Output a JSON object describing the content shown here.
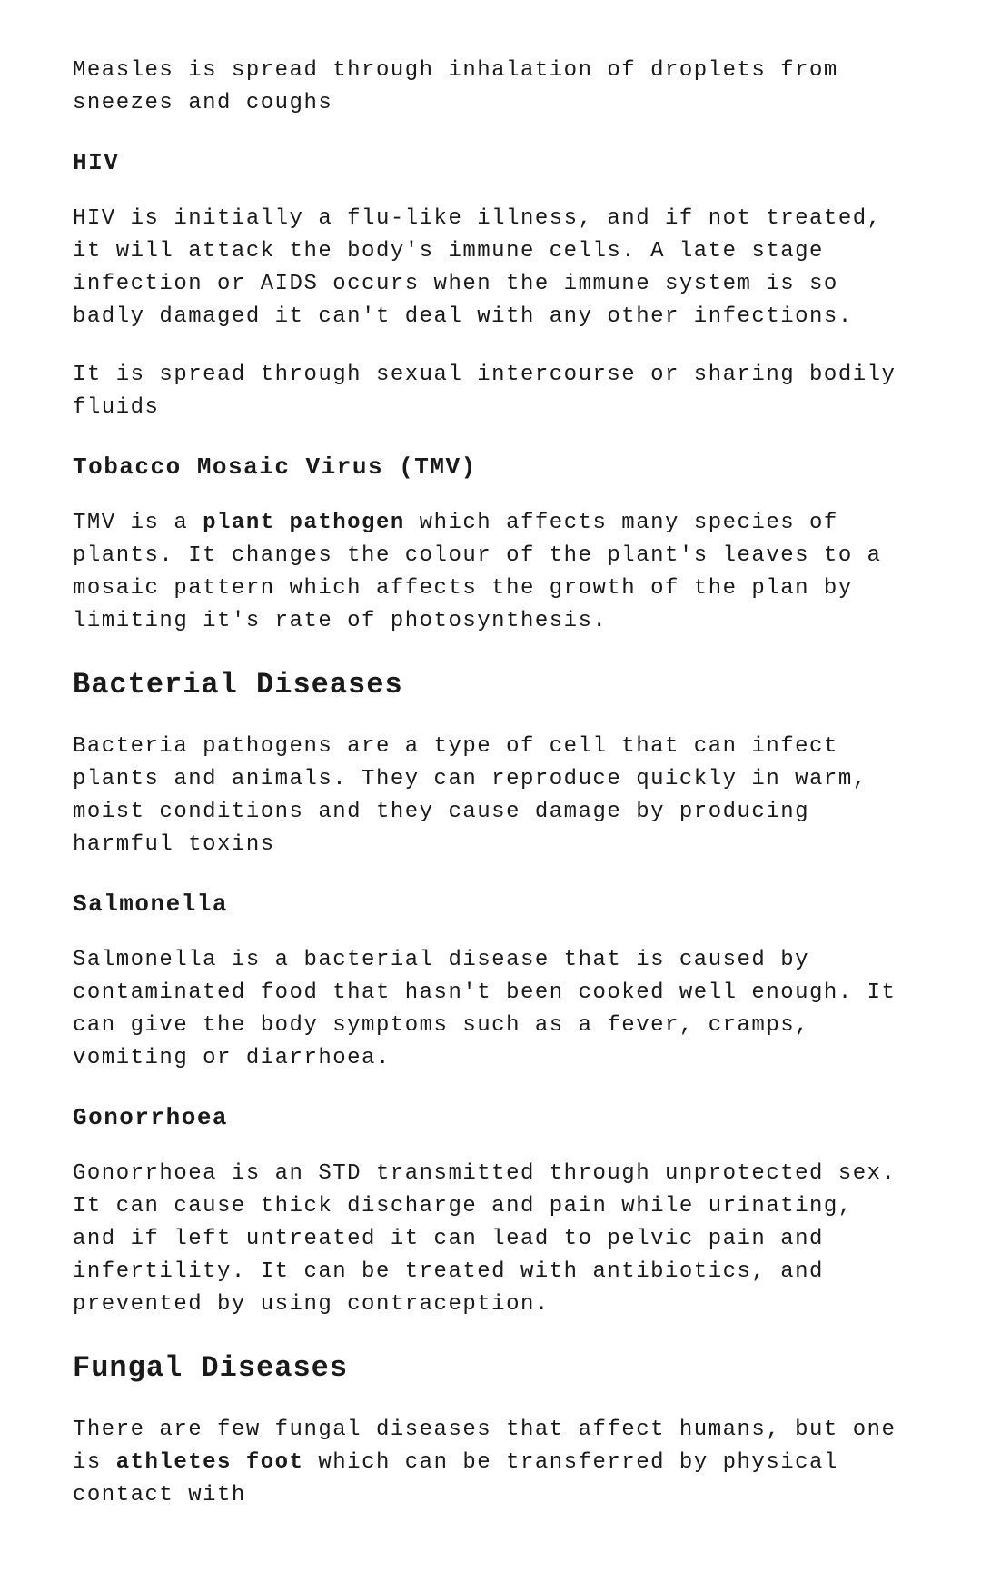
{
  "p_measles": "Measles is spread through inhalation of droplets from sneezes and coughs",
  "h_hiv": "HIV",
  "p_hiv1": "HIV is initially a flu-like illness, and if not treated, it will attack the body's immune cells. A late stage infection or AIDS occurs when the immune system is so badly damaged it can't deal with any other infections.",
  "p_hiv2": "It is spread through sexual intercourse or sharing bodily fluids",
  "h_tmv": "Tobacco Mosaic Virus (TMV)",
  "p_tmv_a": "TMV is a ",
  "p_tmv_b": "plant pathogen",
  "p_tmv_c": " which affects many species of plants. It changes the colour of the plant's leaves to a mosaic pattern which affects the growth of the plan by limiting it's rate of photosynthesis.",
  "h_bacterial": "Bacterial Diseases",
  "p_bacterial": "Bacteria pathogens are a type of cell that can infect plants and animals. They can reproduce quickly in warm, moist conditions and they cause damage by producing harmful toxins",
  "h_salmonella": "Salmonella",
  "p_salmonella": "Salmonella is a bacterial disease that is caused by contaminated food that hasn't been cooked well enough. It can give the body symptoms such as a fever, cramps, vomiting or diarrhoea.",
  "h_gonorrhoea": "Gonorrhoea",
  "p_gonorrhoea": "Gonorrhoea is an STD transmitted through unprotected sex. It can cause thick discharge and pain while urinating, and if left untreated it can lead to pelvic pain and infertility. It can be treated with antibiotics, and prevented by using contraception.",
  "h_fungal": "Fungal Diseases",
  "p_fungal_a": "There are few fungal diseases that affect humans, but one is ",
  "p_fungal_b": "athletes foot",
  "p_fungal_c": " which can be transferred by physical contact with"
}
